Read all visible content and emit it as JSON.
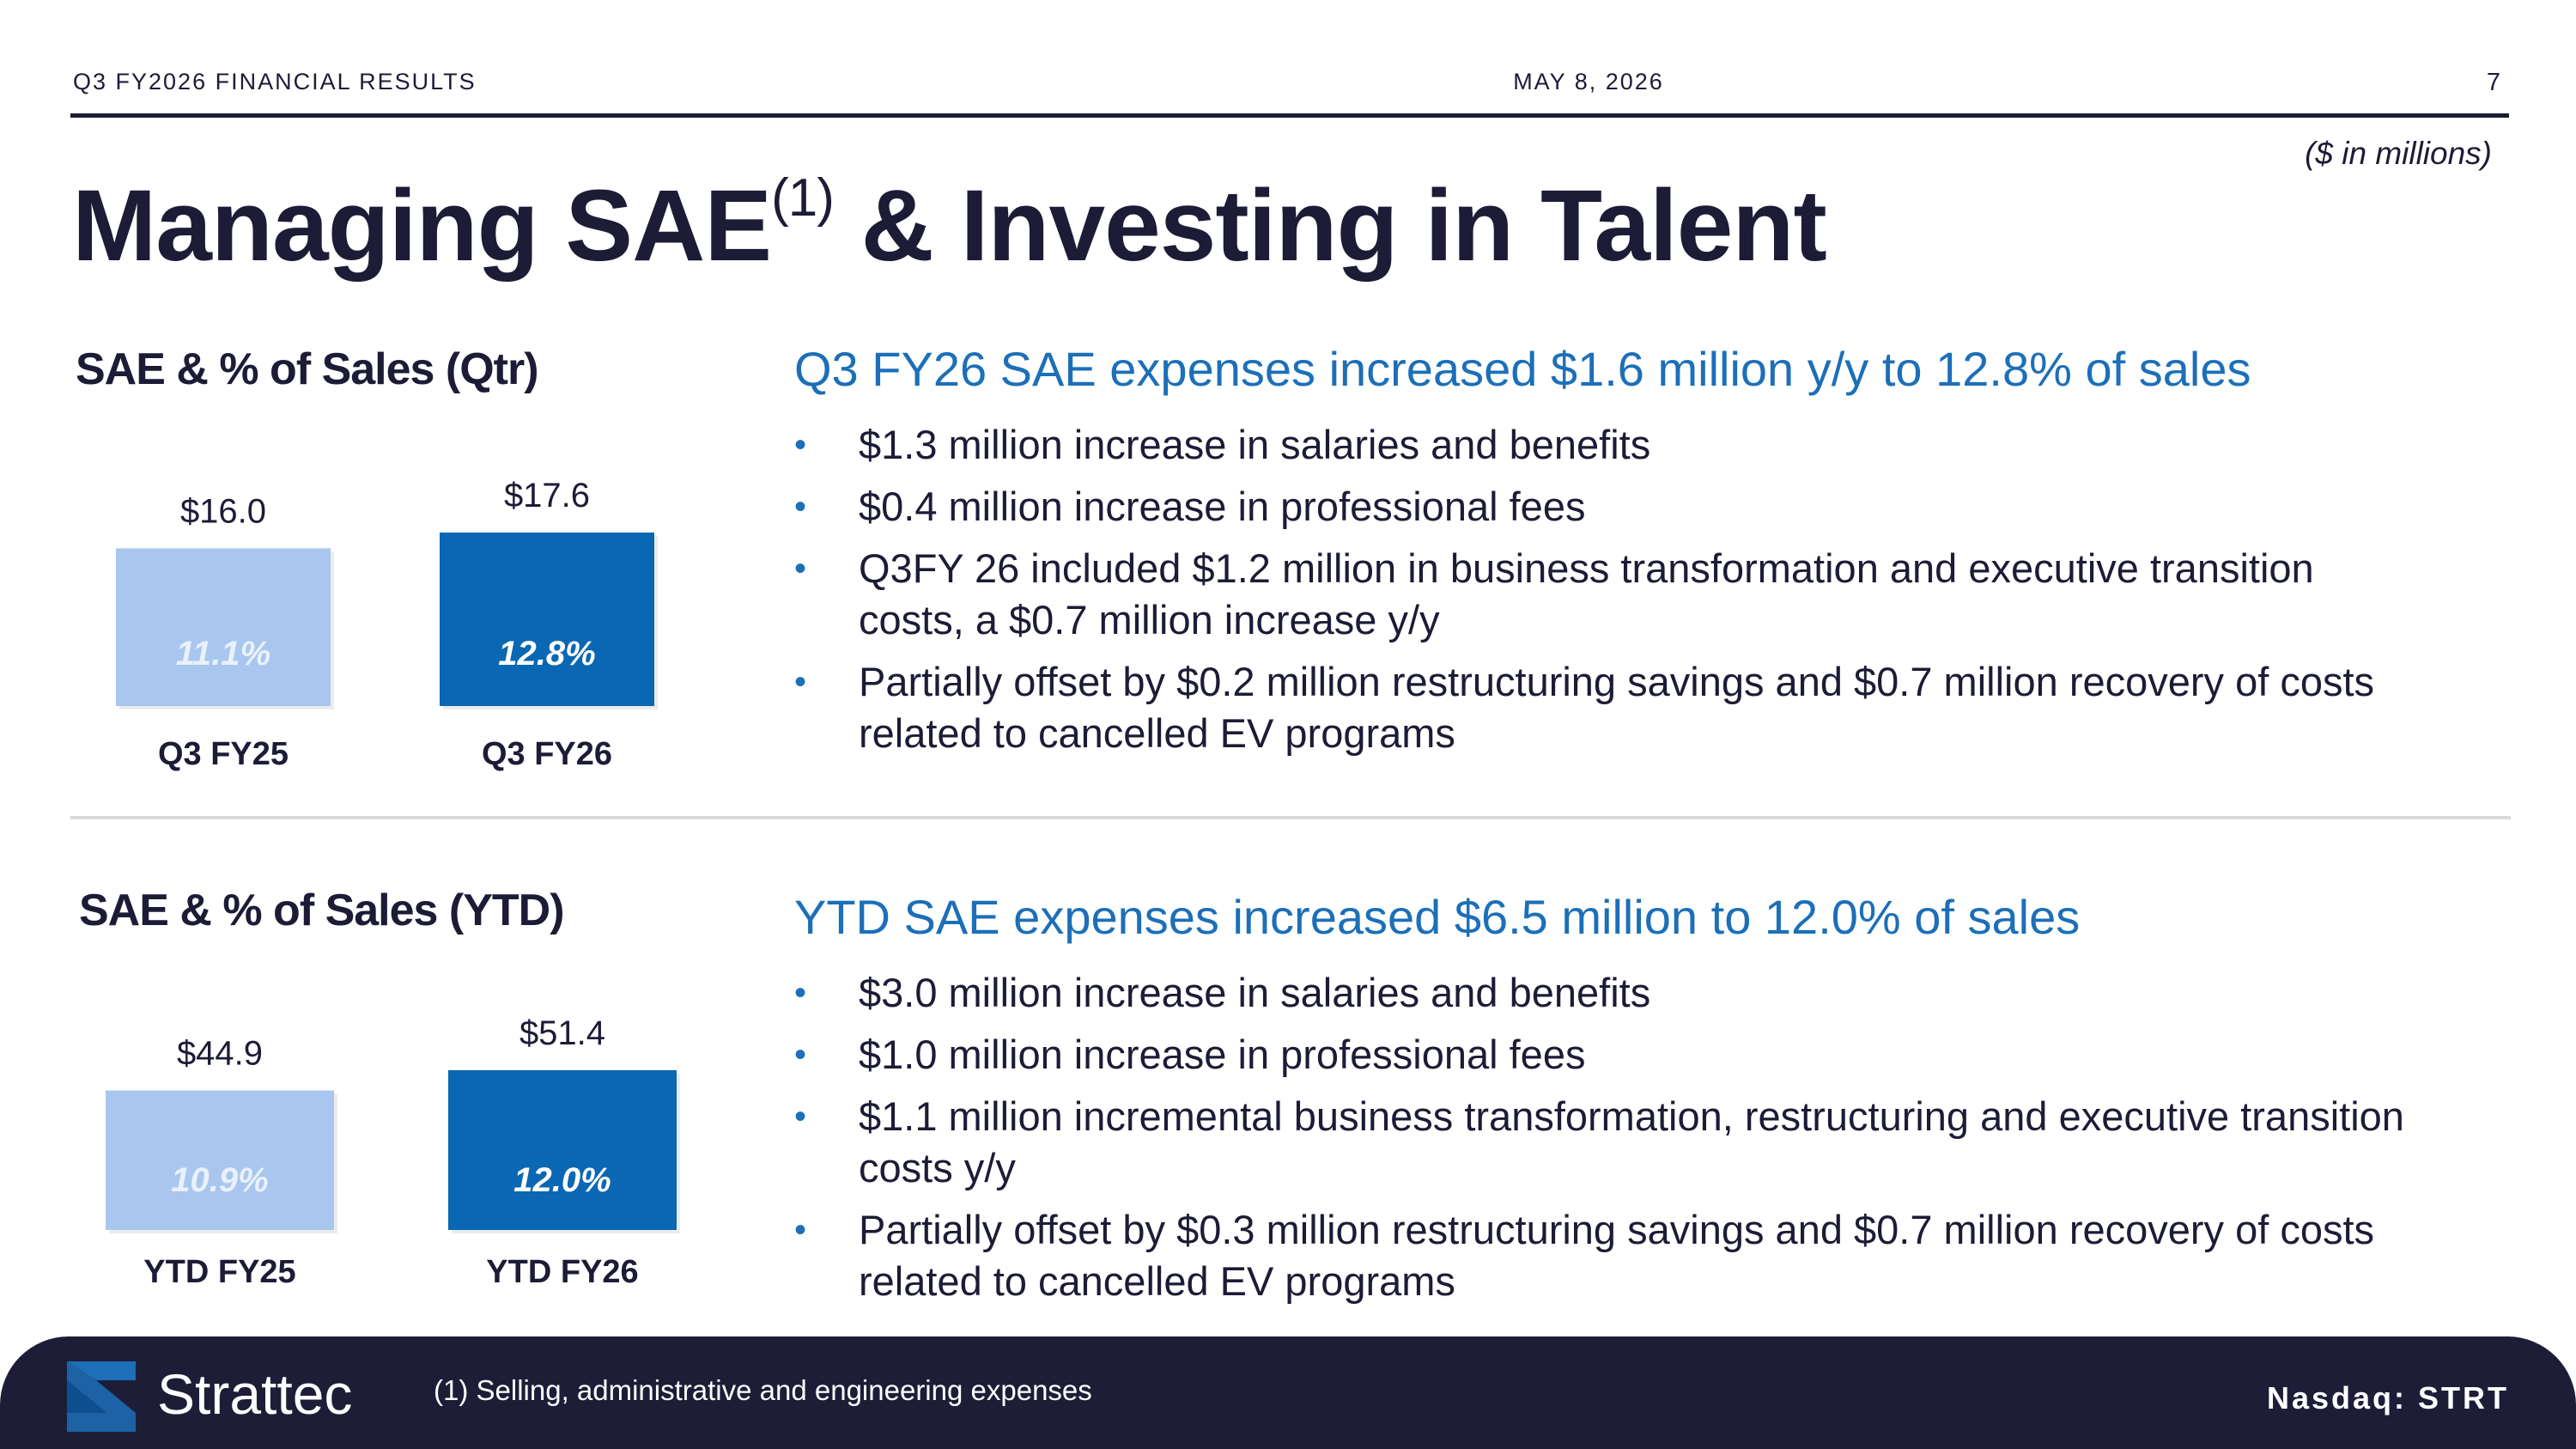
{
  "header": {
    "left": "Q3 FY2026 FINANCIAL RESULTS",
    "date": "MAY 8, 2026",
    "page": "7"
  },
  "units": "($ in millions)",
  "title": {
    "main": "Managing SAE",
    "sup": "(1)",
    "rest": " & Investing in Talent"
  },
  "colors": {
    "navy": "#1c1c36",
    "accent": "#1c6fb8",
    "bar_prior": "#a9c7ee",
    "bar_current": "#0a67b3"
  },
  "chart_data": [
    {
      "type": "bar",
      "title": "SAE & % of Sales (Qtr)",
      "categories": [
        "Q3 FY25",
        "Q3 FY26"
      ],
      "values": [
        16.0,
        17.6
      ],
      "value_labels": [
        "$16.0",
        "$17.6"
      ],
      "pct_labels": [
        "11.1%",
        "12.8%"
      ],
      "colors": [
        "#a9c7ee",
        "#0a67b3"
      ]
    },
    {
      "type": "bar",
      "title": "SAE & % of Sales (YTD)",
      "categories": [
        "YTD FY25",
        "YTD FY26"
      ],
      "values": [
        44.9,
        51.4
      ],
      "value_labels": [
        "$44.9",
        "$51.4"
      ],
      "pct_labels": [
        "10.9%",
        "12.0%"
      ],
      "colors": [
        "#a9c7ee",
        "#0a67b3"
      ]
    }
  ],
  "qtr": {
    "headline": "Q3 FY26 SAE expenses increased $1.6 million y/y to 12.8% of sales",
    "bullets": [
      "$1.3 million increase in salaries and benefits",
      "$0.4 million increase in professional fees",
      "Q3FY 26 included $1.2 million in business transformation and executive transition costs, a $0.7 million increase y/y",
      "Partially offset by $0.2 million restructuring savings and $0.7 million recovery of costs related to cancelled EV programs"
    ]
  },
  "ytd": {
    "headline": "YTD SAE expenses increased $6.5 million to 12.0% of sales",
    "bullets": [
      "$3.0 million increase in salaries and benefits",
      "$1.0 million increase in professional fees",
      "$1.1 million incremental business transformation, restructuring and executive transition costs y/y",
      "Partially offset by $0.3 million restructuring savings and $0.7 million recovery of costs related to cancelled EV programs"
    ]
  },
  "bullet_glyph": "•",
  "footer": {
    "brand": "Strattec",
    "footnote": "(1) Selling, administrative and engineering expenses",
    "ticker": "Nasdaq: STRT",
    "logo_icon": "strattec-logo-icon"
  }
}
